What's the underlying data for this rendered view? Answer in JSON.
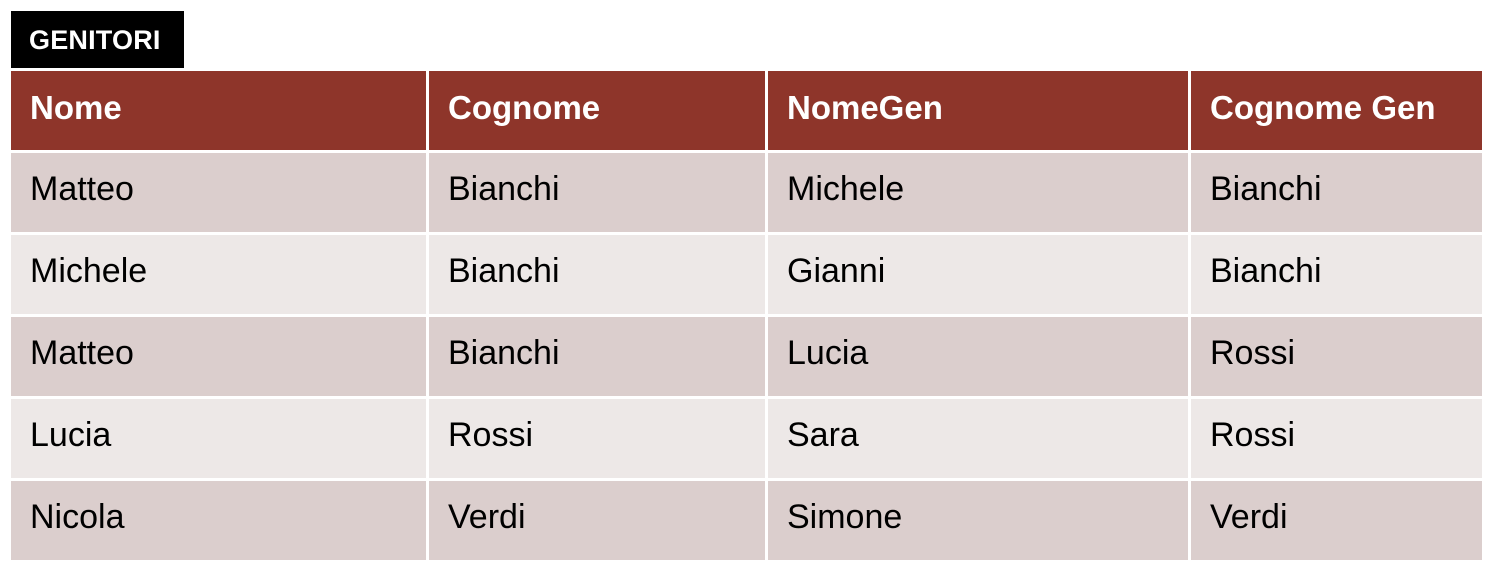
{
  "title": "GENITORI",
  "colors": {
    "header_bg": "#8e352a",
    "row_dark": "#dbcecd",
    "row_light": "#ede8e7",
    "title_bg": "#000000"
  },
  "table": {
    "columns": [
      "Nome",
      "Cognome",
      "NomeGen",
      "Cognome Gen"
    ],
    "rows": [
      [
        "Matteo",
        "Bianchi",
        "Michele",
        "Bianchi"
      ],
      [
        "Michele",
        "Bianchi",
        "Gianni",
        "Bianchi"
      ],
      [
        "Matteo",
        "Bianchi",
        "Lucia",
        "Rossi"
      ],
      [
        "Lucia",
        "Rossi",
        "Sara",
        "Rossi"
      ],
      [
        "Nicola",
        "Verdi",
        "Simone",
        "Verdi"
      ]
    ]
  }
}
